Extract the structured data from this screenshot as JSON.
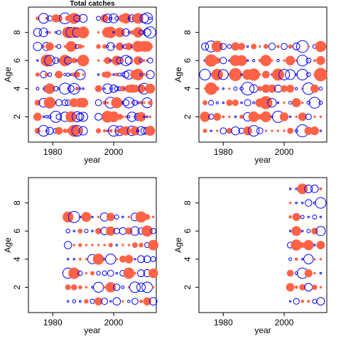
{
  "chart_data": [
    {
      "type": "scatter",
      "title": "Total catches",
      "xlabel": "year",
      "ylabel": "Age",
      "xlim": [
        1972,
        2014
      ],
      "ylim": [
        0.2,
        9.8
      ],
      "xticks": [
        1980,
        2000
      ],
      "yticks": [
        2,
        4,
        6,
        8
      ],
      "years": [
        1975,
        1977,
        1978,
        1979,
        1981,
        1982,
        1984,
        1985,
        1986,
        1987,
        1988,
        1989,
        1990,
        1995,
        1997,
        1998,
        1999,
        2000,
        2001,
        2002,
        2003,
        2004,
        2005,
        2006,
        2007,
        2008,
        2009,
        2010,
        2011,
        2012
      ],
      "ages": [
        1,
        2,
        3,
        4,
        5,
        6,
        7,
        8,
        9
      ],
      "pattern": {
        "seed": 1,
        "neg_prob": 0.5,
        "max_radius": 8
      }
    },
    {
      "type": "scatter",
      "title": "",
      "xlabel": "year",
      "ylabel": "Age",
      "xlim": [
        1972,
        2014
      ],
      "ylim": [
        0.2,
        9.8
      ],
      "xticks": [
        1980,
        2000
      ],
      "yticks": [
        2,
        4,
        6,
        8
      ],
      "years": [
        1974,
        1976,
        1978,
        1980,
        1982,
        1984,
        1986,
        1988,
        1990,
        1992,
        1994,
        1996,
        1998,
        2000,
        2002,
        2004,
        2006,
        2008,
        2010,
        2012
      ],
      "ages": [
        1,
        2,
        3,
        4,
        5,
        6,
        7
      ],
      "pattern": {
        "seed": 2,
        "neg_prob": 0.55,
        "max_radius": 9
      }
    },
    {
      "type": "scatter",
      "title": "",
      "xlabel": "year",
      "ylabel": "Age",
      "xlim": [
        1972,
        2014
      ],
      "ylim": [
        0.2,
        9.8
      ],
      "xticks": [
        1980,
        2000
      ],
      "yticks": [
        2,
        4,
        6,
        8
      ],
      "years": [
        1985,
        1987,
        1989,
        1991,
        1993,
        1995,
        1997,
        1999,
        2001,
        2003,
        2005,
        2007,
        2009,
        2011,
        2013
      ],
      "ages": [
        1,
        2,
        3,
        4,
        5,
        6,
        7
      ],
      "pattern": {
        "seed": 3,
        "neg_prob": 0.5,
        "max_radius": 8
      }
    },
    {
      "type": "scatter",
      "title": "",
      "xlabel": "year",
      "ylabel": "Age",
      "xlim": [
        1972,
        2014
      ],
      "ylim": [
        0.2,
        9.8
      ],
      "xticks": [
        1980,
        2000
      ],
      "yticks": [
        2,
        4,
        6,
        8
      ],
      "years": [
        2002,
        2004,
        2006,
        2008,
        2010,
        2012
      ],
      "ages": [
        1,
        2,
        3,
        4,
        5,
        6,
        7,
        8,
        9
      ],
      "pattern": {
        "seed": 4,
        "neg_prob": 0.5,
        "max_radius": 8
      }
    }
  ],
  "colors": {
    "positive": "#0000ff",
    "negative": "#ff6347"
  }
}
